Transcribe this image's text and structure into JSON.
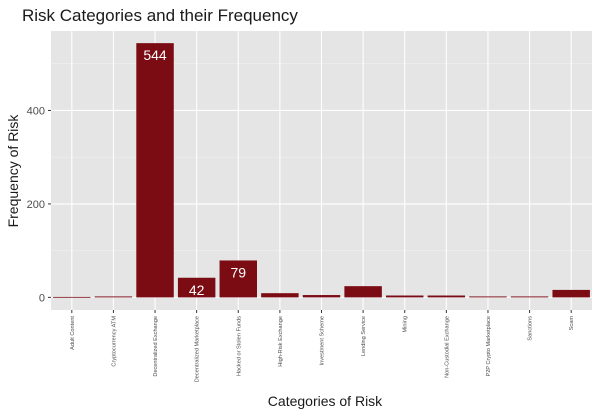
{
  "chart_data": {
    "type": "bar",
    "title": "Risk Categories and their Frequency",
    "xlabel": "Categories of Risk",
    "ylabel": "Frequency of Risk",
    "categories": [
      "Adult Content",
      "Cryptocurrency ATM",
      "Decentralized Exchange",
      "Decentralized Marketplace",
      "Hacked or Stolen Funds",
      "High-Risk Exchange",
      "Investment Scheme",
      "Lending Service",
      "Mining",
      "Non-Custodial Exchange",
      "P2P Crypto Marketplace",
      "Sanctions",
      "Scam"
    ],
    "values": [
      1,
      2,
      544,
      42,
      79,
      9,
      5,
      24,
      4,
      4,
      2,
      2,
      16
    ],
    "data_labels": [
      "",
      "",
      "544",
      "42",
      "79",
      "",
      "",
      "",
      "",
      "",
      "",
      "",
      ""
    ],
    "yticks": [
      0,
      200,
      400
    ],
    "ylim": [
      -27,
      570
    ],
    "grid": true,
    "legend": "none",
    "colors": {
      "bar": "#7b0c14",
      "panel": "#e5e5e5",
      "grid_major": "#ffffff",
      "grid_minor": "#f0f0f0"
    }
  }
}
